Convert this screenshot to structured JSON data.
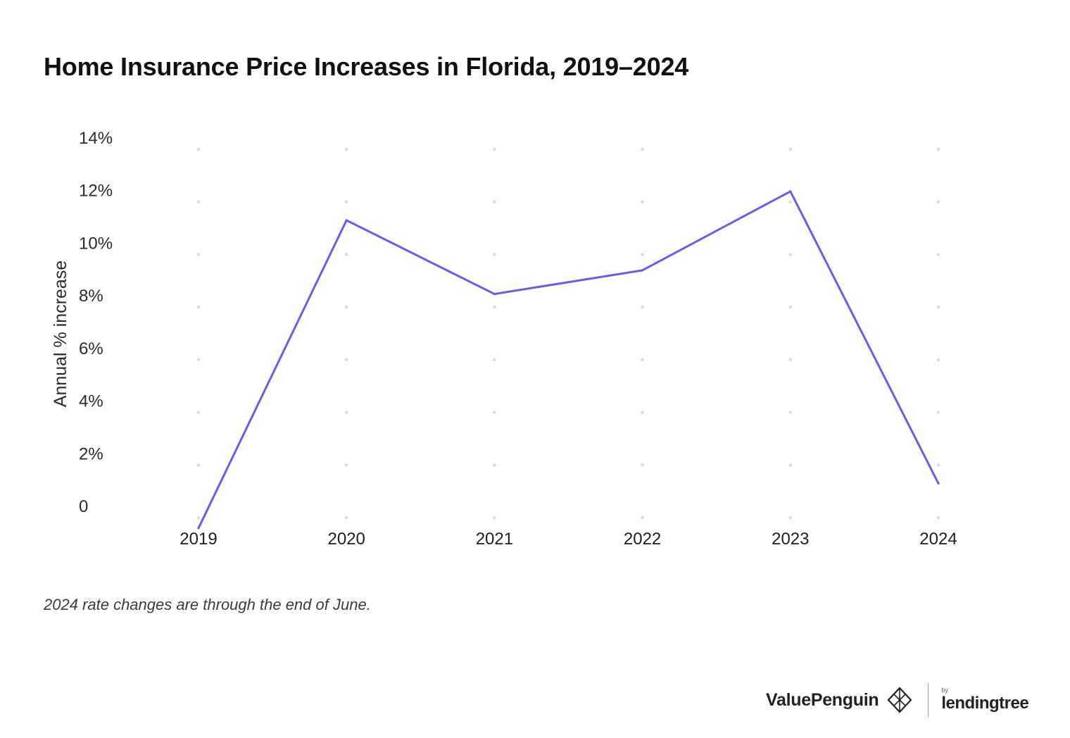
{
  "chart_data": {
    "type": "line",
    "title": "Home Insurance Price Increases in Florida, 2019–2024",
    "xlabel": "",
    "ylabel": "Annual % increase",
    "categories": [
      "2019",
      "2020",
      "2021",
      "2022",
      "2023",
      "2024"
    ],
    "series": [
      {
        "name": "Annual % increase",
        "values": [
          -0.4,
          11.3,
          8.5,
          9.4,
          12.4,
          1.3
        ]
      }
    ],
    "ylim": [
      0,
      14
    ],
    "yticks": [
      0,
      2,
      4,
      6,
      8,
      10,
      12,
      14
    ],
    "ytick_labels": [
      "0",
      "2%",
      "4%",
      "6%",
      "8%",
      "10%",
      "12%",
      "14%"
    ],
    "grid": "dotted",
    "line_color": "#6b5ce7",
    "legend": "none"
  },
  "footnote": "2024 rate changes are through the end of June.",
  "branding": {
    "primary": "ValuePenguin",
    "secondary_prefix": "by",
    "secondary": "lendingtree"
  }
}
